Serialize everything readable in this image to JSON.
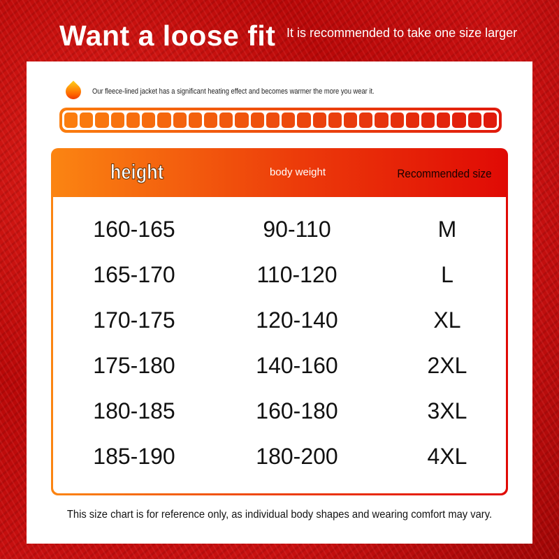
{
  "header": {
    "title": "Want a loose fit",
    "subtitle": "It is recommended to take one size larger"
  },
  "notice": {
    "icon": "flame-icon",
    "text": "Our fleece-lined jacket has a significant heating effect and becomes warmer the more you wear it."
  },
  "heat_bar": {
    "segments": 28,
    "fill_fraction": 1.0,
    "color_start": "#fb7d0e",
    "color_end": "#e01a0c"
  },
  "table": {
    "headers": {
      "height": "height",
      "weight": "body weight",
      "size": "Recommended size"
    },
    "rows": [
      {
        "height": "160-165",
        "weight": "90-110",
        "size": "M"
      },
      {
        "height": "165-170",
        "weight": "110-120",
        "size": "L"
      },
      {
        "height": "170-175",
        "weight": "120-140",
        "size": "XL"
      },
      {
        "height": "175-180",
        "weight": "140-160",
        "size": "2XL"
      },
      {
        "height": "180-185",
        "weight": "160-180",
        "size": "3XL"
      },
      {
        "height": "185-190",
        "weight": "180-200",
        "size": "4XL"
      }
    ]
  },
  "footer": "This size chart is for reference only, as individual body shapes and wearing comfort may vary.",
  "colors": {
    "background": "#c81010",
    "accent_orange": "#fb8512",
    "accent_red": "#e00a05"
  }
}
